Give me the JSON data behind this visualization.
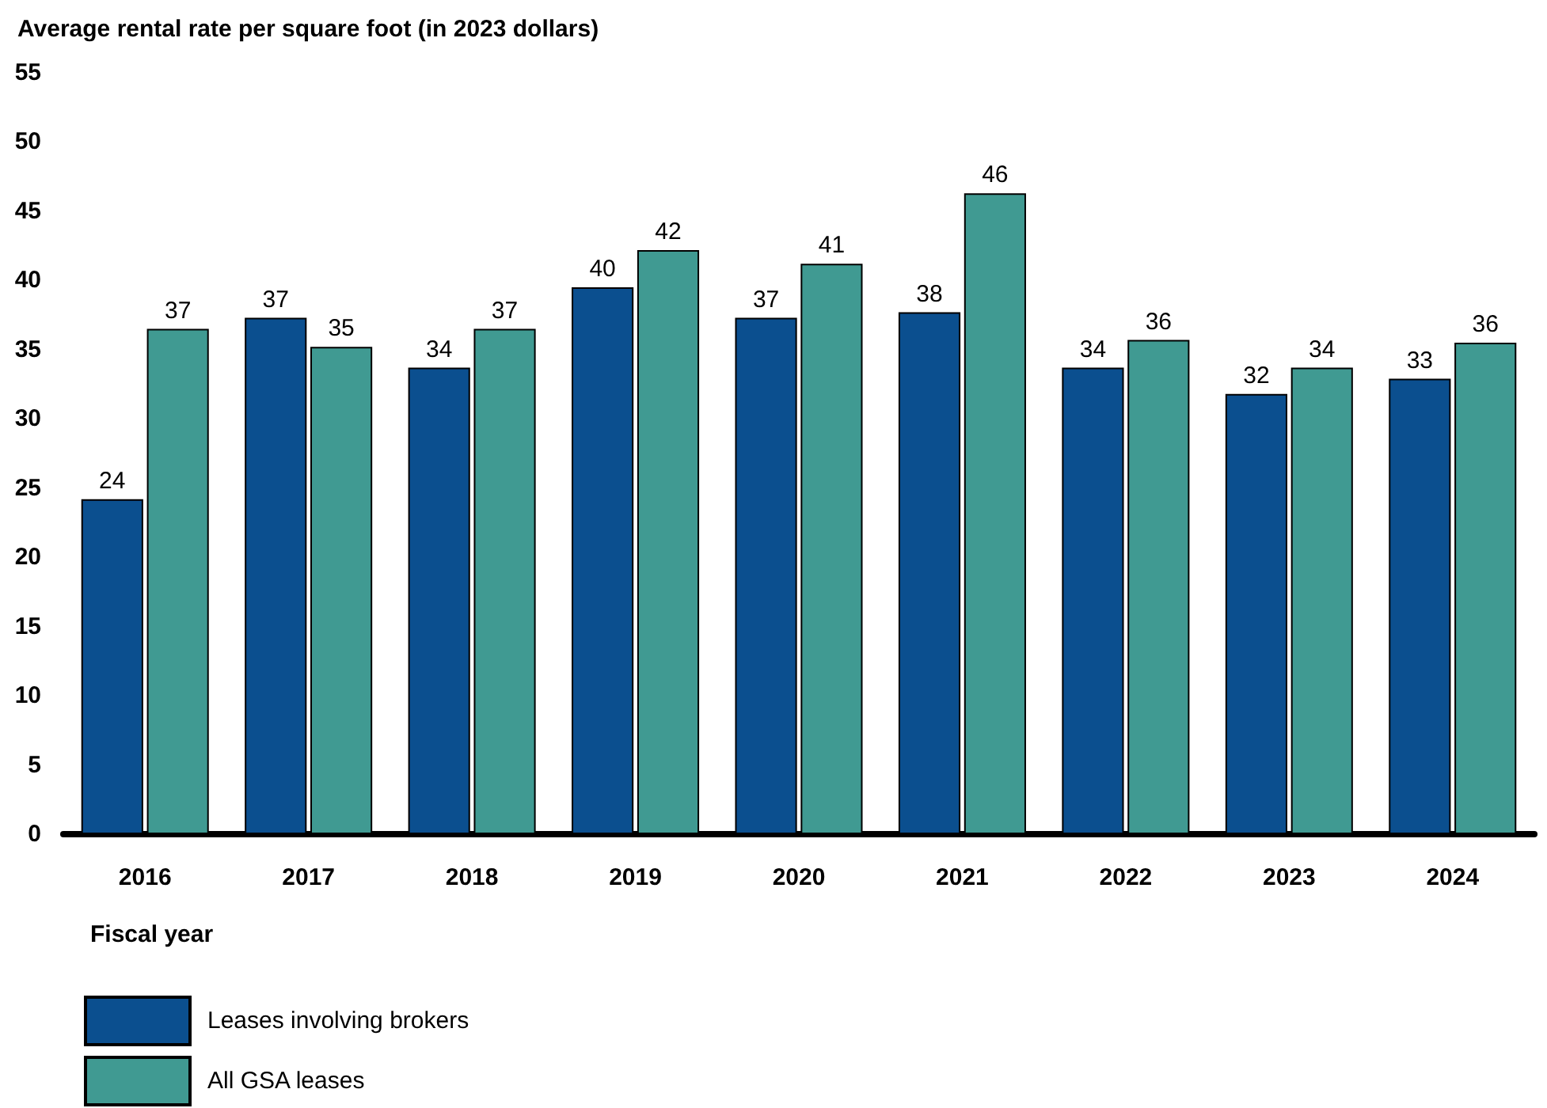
{
  "chart_data": {
    "type": "bar",
    "ylabel": "Average rental rate per square foot (in 2023 dollars)",
    "xlabel": "Fiscal year",
    "categories": [
      "2016",
      "2017",
      "2018",
      "2019",
      "2020",
      "2021",
      "2022",
      "2023",
      "2024"
    ],
    "series": [
      {
        "name": "Leases involving brokers",
        "color": "#0b4f8f",
        "values": [
          24.2,
          37.3,
          33.7,
          39.5,
          37.3,
          37.7,
          33.7,
          31.8,
          32.9
        ],
        "value_labels": [
          "24",
          "37",
          "34",
          "40",
          "37",
          "38",
          "34",
          "32",
          "33"
        ]
      },
      {
        "name": "All GSA leases",
        "color": "#409a92",
        "values": [
          36.5,
          35.2,
          36.5,
          42.2,
          41.2,
          46.3,
          35.7,
          33.7,
          35.5
        ],
        "value_labels": [
          "37",
          "35",
          "37",
          "42",
          "41",
          "46",
          "36",
          "34",
          "36"
        ]
      }
    ],
    "ylim": [
      0,
      55
    ],
    "yticks": [
      0,
      5,
      10,
      15,
      20,
      25,
      30,
      35,
      40,
      45,
      50,
      55
    ],
    "grid": false,
    "legend": "bottom left"
  }
}
